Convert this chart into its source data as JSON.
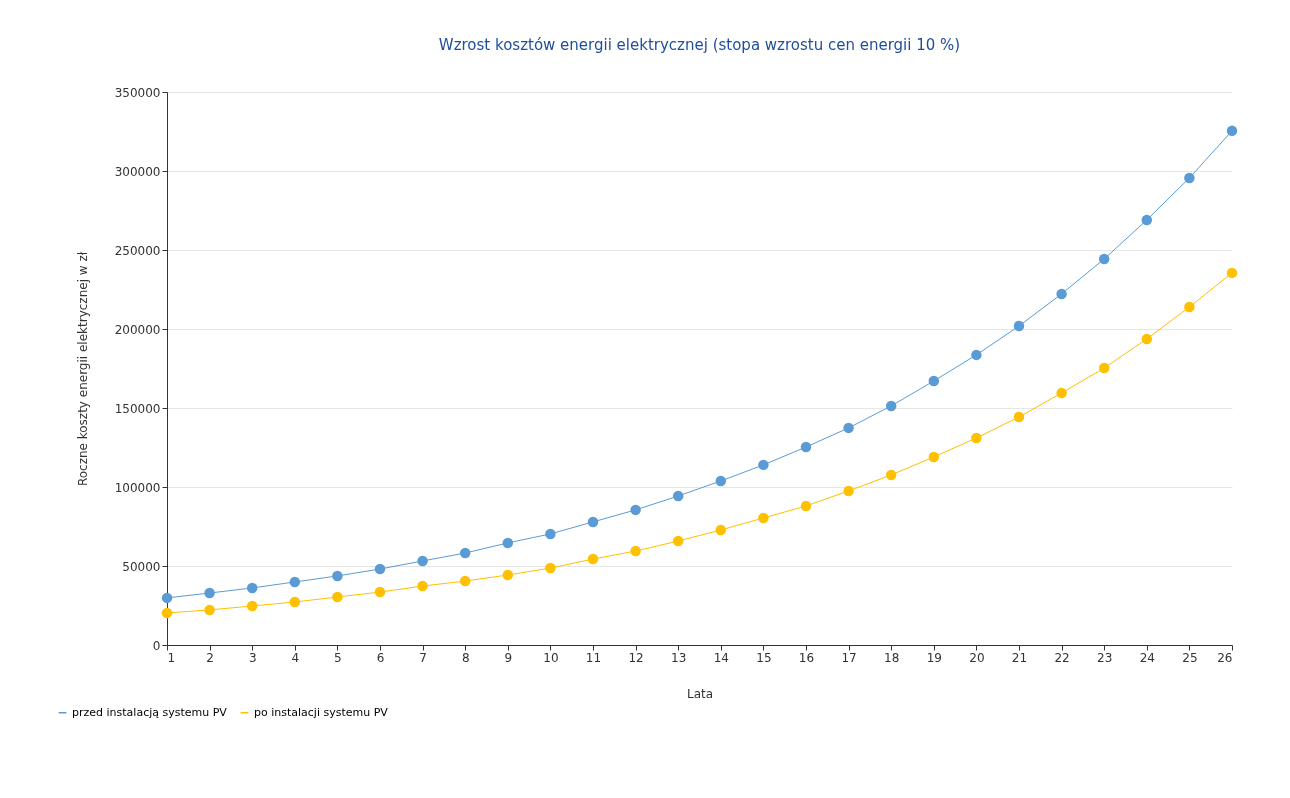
{
  "chart_data": {
    "type": "line",
    "title": "Wzrost kosztów energii elektrycznej (stopa wzrostu cen energii 10 %)",
    "xlabel": "Lata",
    "ylabel": "Roczne koszty energii elektrycznej w zł",
    "x": [
      1,
      2,
      3,
      4,
      5,
      6,
      7,
      8,
      9,
      10,
      11,
      12,
      13,
      14,
      15,
      16,
      17,
      18,
      19,
      20,
      21,
      22,
      23,
      24,
      25,
      26
    ],
    "series": [
      {
        "name": "przed instalacją systemu PV",
        "color": "#5b9bd5",
        "values": [
          29800,
          32900,
          36100,
          39900,
          43700,
          48100,
          53200,
          58200,
          64600,
          70300,
          77900,
          85500,
          94300,
          103800,
          114000,
          125300,
          137400,
          151300,
          167100,
          183600,
          201900,
          222200,
          244300,
          269000,
          295600,
          325400
        ]
      },
      {
        "name": "po instalacji systemu PV",
        "color": "#ffc000",
        "values": [
          20300,
          22200,
          24700,
          27200,
          30400,
          33500,
          37300,
          40500,
          44300,
          48700,
          54400,
          59500,
          65800,
          72800,
          80400,
          88000,
          97500,
          107600,
          119000,
          131000,
          144300,
          159500,
          175300,
          193700,
          213900,
          235500
        ]
      }
    ],
    "xlim": [
      1,
      26
    ],
    "xticks": [
      1,
      2,
      3,
      4,
      5,
      6,
      7,
      8,
      9,
      10,
      11,
      12,
      13,
      14,
      15,
      16,
      17,
      18,
      19,
      20,
      21,
      22,
      23,
      24,
      25,
      26
    ],
    "ylim": [
      0,
      350000
    ],
    "yticks": [
      0,
      50000,
      100000,
      150000,
      200000,
      250000,
      300000,
      350000
    ],
    "grid": "y",
    "legend": "bottom left",
    "marker": "circle",
    "line_style": "solid"
  }
}
